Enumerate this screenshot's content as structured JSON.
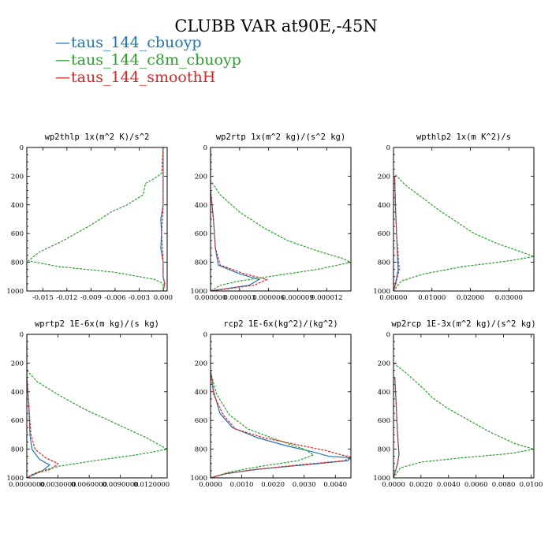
{
  "title": "CLUBB VAR at90E,-45N",
  "legend": [
    {
      "dash": "—",
      "label": "taus_144_cbuoyp",
      "color": "#1f77b4"
    },
    {
      "dash": "—",
      "label": "taus_144_c8m_cbuoyp",
      "color": "#2ca02c"
    },
    {
      "dash": "—",
      "label": "taus_144_smoothH",
      "color": "#d62728"
    }
  ],
  "chart_data": [
    {
      "type": "line",
      "title": "wp2thlp  1x(m^2 K)/s^2",
      "xlim": [
        -0.017,
        0.0005
      ],
      "ylim": [
        1000,
        0
      ],
      "xticks": [
        -0.015,
        -0.012,
        -0.009,
        -0.006,
        -0.003,
        0.0
      ],
      "xtick_labels": [
        "-0.015",
        "-0.012",
        "-0.009",
        "-0.006",
        "-0.003",
        "0.000"
      ],
      "yticks": [
        0,
        200,
        400,
        600,
        800,
        1000
      ],
      "ytick_labels": [
        "0",
        "200",
        "400",
        "600",
        "800",
        "1000"
      ],
      "series": [
        {
          "name": "taus_144_cbuoyp",
          "color": "#1f77b4",
          "dashed": false,
          "points": [
            [
              0,
              0
            ],
            [
              0,
              200
            ],
            [
              0,
              400
            ],
            [
              -0.0003,
              500
            ],
            [
              -0.0002,
              600
            ],
            [
              -0.0003,
              700
            ],
            [
              0,
              800
            ],
            [
              0,
              900
            ],
            [
              0.0002,
              950
            ],
            [
              0,
              1000
            ]
          ]
        },
        {
          "name": "taus_144_c8m_cbuoyp",
          "color": "#2ca02c",
          "dashed": true,
          "points": [
            [
              0,
              0
            ],
            [
              -0.0002,
              180
            ],
            [
              -0.0012,
              220
            ],
            [
              -0.0022,
              250
            ],
            [
              -0.0025,
              330
            ],
            [
              -0.0045,
              400
            ],
            [
              -0.0065,
              450
            ],
            [
              -0.009,
              540
            ],
            [
              -0.0125,
              650
            ],
            [
              -0.0155,
              730
            ],
            [
              -0.0168,
              790
            ],
            [
              -0.013,
              830
            ],
            [
              -0.006,
              870
            ],
            [
              -0.001,
              920
            ],
            [
              0,
              950
            ],
            [
              0,
              1000
            ]
          ]
        },
        {
          "name": "taus_144_smoothH",
          "color": "#d62728",
          "dashed": true,
          "points": [
            [
              0,
              0
            ],
            [
              0,
              200
            ],
            [
              0,
              400
            ],
            [
              -0.0002,
              600
            ],
            [
              0,
              800
            ],
            [
              0,
              900
            ],
            [
              0.0002,
              950
            ],
            [
              0,
              1000
            ]
          ]
        }
      ]
    },
    {
      "type": "line",
      "title": "wp2rtp  1x(m^2 kg)/(s^2 kg)",
      "xlim": [
        0,
        1.45e-05
      ],
      "ylim": [
        1000,
        0
      ],
      "xticks": [
        0,
        3e-06,
        6e-06,
        9e-06,
        1.2e-05
      ],
      "xtick_labels": [
        "0.000000",
        "0.000003",
        "0.000006",
        "0.000009",
        "0.000012"
      ],
      "yticks": [
        0,
        200,
        400,
        600,
        800,
        1000
      ],
      "ytick_labels": [
        "0",
        "200",
        "400",
        "600",
        "800",
        "1000"
      ],
      "series": [
        {
          "name": "taus_144_cbuoyp",
          "color": "#1f77b4",
          "dashed": false,
          "points": [
            [
              0,
              0
            ],
            [
              0,
              300
            ],
            [
              3e-07,
              500
            ],
            [
              5e-07,
              700
            ],
            [
              8e-07,
              820
            ],
            [
              3e-06,
              880
            ],
            [
              5e-06,
              920
            ],
            [
              4e-06,
              960
            ],
            [
              0,
              1000
            ]
          ]
        },
        {
          "name": "taus_144_c8m_cbuoyp",
          "color": "#2ca02c",
          "dashed": true,
          "points": [
            [
              0,
              0
            ],
            [
              0,
              230
            ],
            [
              1e-06,
              330
            ],
            [
              3e-06,
              450
            ],
            [
              5.5e-06,
              560
            ],
            [
              8e-06,
              650
            ],
            [
              1.1e-05,
              720
            ],
            [
              1.35e-05,
              770
            ],
            [
              1.45e-05,
              800
            ],
            [
              1.1e-05,
              850
            ],
            [
              7e-06,
              890
            ],
            [
              3e-06,
              930
            ],
            [
              1e-06,
              960
            ],
            [
              0,
              1000
            ]
          ]
        },
        {
          "name": "taus_144_smoothH",
          "color": "#d62728",
          "dashed": true,
          "points": [
            [
              0,
              0
            ],
            [
              0,
              300
            ],
            [
              3e-07,
              500
            ],
            [
              5e-07,
              700
            ],
            [
              1e-06,
              820
            ],
            [
              3.5e-06,
              880
            ],
            [
              5.8e-06,
              920
            ],
            [
              4.5e-06,
              960
            ],
            [
              0,
              1000
            ]
          ]
        }
      ]
    },
    {
      "type": "line",
      "title": "wpthlp2  1x(m K^2)/s",
      "xlim": [
        0,
        0.0365
      ],
      "ylim": [
        1000,
        0
      ],
      "xticks": [
        0,
        0.01,
        0.02,
        0.03
      ],
      "xtick_labels": [
        "0.00000",
        "0.01000",
        "0.02000",
        "0.03000"
      ],
      "yticks": [
        0,
        200,
        400,
        600,
        800,
        1000
      ],
      "ytick_labels": [
        "0",
        "200",
        "400",
        "600",
        "800",
        "1000"
      ],
      "series": [
        {
          "name": "taus_144_cbuoyp",
          "color": "#1f77b4",
          "dashed": false,
          "points": [
            [
              0.0003,
              200
            ],
            [
              0.0005,
              400
            ],
            [
              0.0008,
              600
            ],
            [
              0.001,
              750
            ],
            [
              0.0012,
              850
            ],
            [
              0.0005,
              950
            ],
            [
              0,
              1000
            ]
          ]
        },
        {
          "name": "taus_144_c8m_cbuoyp",
          "color": "#2ca02c",
          "dashed": true,
          "points": [
            [
              0.0005,
              190
            ],
            [
              0.003,
              260
            ],
            [
              0.0075,
              350
            ],
            [
              0.012,
              440
            ],
            [
              0.0165,
              520
            ],
            [
              0.021,
              600
            ],
            [
              0.027,
              670
            ],
            [
              0.0335,
              730
            ],
            [
              0.0365,
              760
            ],
            [
              0.03,
              790
            ],
            [
              0.018,
              830
            ],
            [
              0.008,
              880
            ],
            [
              0.002,
              930
            ],
            [
              0,
              1000
            ]
          ]
        },
        {
          "name": "taus_144_smoothH",
          "color": "#d62728",
          "dashed": true,
          "points": [
            [
              0.0003,
              200
            ],
            [
              0.0005,
              400
            ],
            [
              0.0008,
              600
            ],
            [
              0.0012,
              750
            ],
            [
              0.0015,
              850
            ],
            [
              0.0006,
              950
            ],
            [
              0,
              1000
            ]
          ]
        }
      ]
    },
    {
      "type": "line",
      "title": "wprtp2  1E-6x(m kg)/(s kg)",
      "xlim": [
        0,
        0.0135
      ],
      "ylim": [
        1000,
        0
      ],
      "xticks": [
        0,
        0.003,
        0.006,
        0.009,
        0.012
      ],
      "xtick_labels": [
        "0.0000000",
        "0.0030000",
        "0.0060000",
        "0.0090000",
        "0.0120000"
      ],
      "yticks": [
        0,
        200,
        400,
        600,
        800,
        1000
      ],
      "ytick_labels": [
        "0",
        "200",
        "400",
        "600",
        "800",
        "1000"
      ],
      "series": [
        {
          "name": "taus_144_cbuoyp",
          "color": "#1f77b4",
          "dashed": false,
          "points": [
            [
              0,
              0
            ],
            [
              0,
              300
            ],
            [
              0.0002,
              500
            ],
            [
              0.0003,
              700
            ],
            [
              0.0005,
              800
            ],
            [
              0.0012,
              870
            ],
            [
              0.0022,
              910
            ],
            [
              0.0015,
              950
            ],
            [
              0,
              1000
            ]
          ]
        },
        {
          "name": "taus_144_c8m_cbuoyp",
          "color": "#2ca02c",
          "dashed": true,
          "points": [
            [
              0,
              250
            ],
            [
              0.001,
              330
            ],
            [
              0.003,
              420
            ],
            [
              0.0055,
              520
            ],
            [
              0.0085,
              620
            ],
            [
              0.0115,
              720
            ],
            [
              0.0135,
              800
            ],
            [
              0.0105,
              840
            ],
            [
              0.0065,
              880
            ],
            [
              0.003,
              920
            ],
            [
              0.001,
              960
            ],
            [
              0,
              1000
            ]
          ]
        },
        {
          "name": "taus_144_smoothH",
          "color": "#d62728",
          "dashed": true,
          "points": [
            [
              0,
              0
            ],
            [
              0,
              300
            ],
            [
              0.0002,
              500
            ],
            [
              0.0004,
              700
            ],
            [
              0.0008,
              800
            ],
            [
              0.0018,
              860
            ],
            [
              0.003,
              900
            ],
            [
              0.0023,
              940
            ],
            [
              0.0005,
              975
            ],
            [
              0,
              1000
            ]
          ]
        }
      ]
    },
    {
      "type": "line",
      "title": "rcp2  1E-6x(kg^2)/(kg^2)",
      "xlim": [
        0,
        0.0045
      ],
      "ylim": [
        1000,
        0
      ],
      "xticks": [
        0,
        0.001,
        0.002,
        0.003,
        0.004
      ],
      "xtick_labels": [
        "0.0000",
        "0.0010",
        "0.0020",
        "0.0030",
        "0.0040"
      ],
      "yticks": [
        0,
        200,
        400,
        600,
        800,
        1000
      ],
      "ytick_labels": [
        "0",
        "200",
        "400",
        "600",
        "800",
        "1000"
      ],
      "series": [
        {
          "name": "taus_144_cbuoyp",
          "color": "#1f77b4",
          "dashed": false,
          "points": [
            [
              0,
              250
            ],
            [
              0.0001,
              400
            ],
            [
              0.0003,
              550
            ],
            [
              0.0007,
              650
            ],
            [
              0.0015,
              720
            ],
            [
              0.0025,
              780
            ],
            [
              0.0033,
              820
            ],
            [
              0.0038,
              850
            ],
            [
              0.0045,
              860
            ],
            [
              0.0044,
              880
            ],
            [
              0.003,
              910
            ],
            [
              0.0015,
              940
            ],
            [
              0.0005,
              970
            ],
            [
              0,
              1000
            ]
          ]
        },
        {
          "name": "taus_144_c8m_cbuoyp",
          "color": "#2ca02c",
          "dashed": true,
          "points": [
            [
              0,
              260
            ],
            [
              0.0002,
              420
            ],
            [
              0.0006,
              560
            ],
            [
              0.0012,
              660
            ],
            [
              0.0022,
              740
            ],
            [
              0.003,
              800
            ],
            [
              0.0033,
              840
            ],
            [
              0.0028,
              880
            ],
            [
              0.0016,
              920
            ],
            [
              0.0006,
              960
            ],
            [
              0,
              1000
            ]
          ]
        },
        {
          "name": "taus_144_smoothH",
          "color": "#d62728",
          "dashed": true,
          "points": [
            [
              0,
              260
            ],
            [
              0.0001,
              420
            ],
            [
              0.0004,
              560
            ],
            [
              0.0008,
              660
            ],
            [
              0.0017,
              720
            ],
            [
              0.0028,
              770
            ],
            [
              0.0037,
              810
            ],
            [
              0.0042,
              840
            ],
            [
              0.0045,
              855
            ],
            [
              0.0043,
              880
            ],
            [
              0.0028,
              910
            ],
            [
              0.0013,
              945
            ],
            [
              0.0004,
              975
            ],
            [
              0,
              1000
            ]
          ]
        }
      ]
    },
    {
      "type": "line",
      "title": "wp2rcp  1E-3x(m^2 kg)/(s^2 kg)",
      "xlim": [
        0,
        0.0102
      ],
      "ylim": [
        1000,
        0
      ],
      "xticks": [
        0,
        0.002,
        0.004,
        0.006,
        0.008,
        0.01
      ],
      "xtick_labels": [
        "0.0000",
        "0.0020",
        "0.0040",
        "0.0060",
        "0.0080",
        "0.0100"
      ],
      "yticks": [
        0,
        200,
        400,
        600,
        800,
        1000
      ],
      "ytick_labels": [
        "0",
        "200",
        "400",
        "600",
        "800",
        "1000"
      ],
      "series": [
        {
          "name": "taus_144_cbuoyp",
          "color": "#1f77b4",
          "dashed": false,
          "points": [
            [
              0.0001,
              300
            ],
            [
              0.0002,
              500
            ],
            [
              0.0003,
              700
            ],
            [
              0.0004,
              840
            ],
            [
              0.0003,
              900
            ],
            [
              0,
              1000
            ]
          ]
        },
        {
          "name": "taus_144_c8m_cbuoyp",
          "color": "#2ca02c",
          "dashed": true,
          "points": [
            [
              0,
              200
            ],
            [
              0.0008,
              260
            ],
            [
              0.0015,
              320
            ],
            [
              0.0022,
              380
            ],
            [
              0.0028,
              440
            ],
            [
              0.004,
              520
            ],
            [
              0.0055,
              600
            ],
            [
              0.007,
              680
            ],
            [
              0.0088,
              760
            ],
            [
              0.0102,
              800
            ],
            [
              0.0085,
              830
            ],
            [
              0.005,
              860
            ],
            [
              0.002,
              890
            ],
            [
              0.0005,
              930
            ],
            [
              0,
              1000
            ]
          ]
        },
        {
          "name": "taus_144_smoothH",
          "color": "#d62728",
          "dashed": true,
          "points": [
            [
              0.0001,
              300
            ],
            [
              0.0002,
              500
            ],
            [
              0.0003,
              700
            ],
            [
              0.0004,
              830
            ],
            [
              0.0003,
              900
            ],
            [
              0,
              1000
            ]
          ]
        }
      ]
    }
  ]
}
